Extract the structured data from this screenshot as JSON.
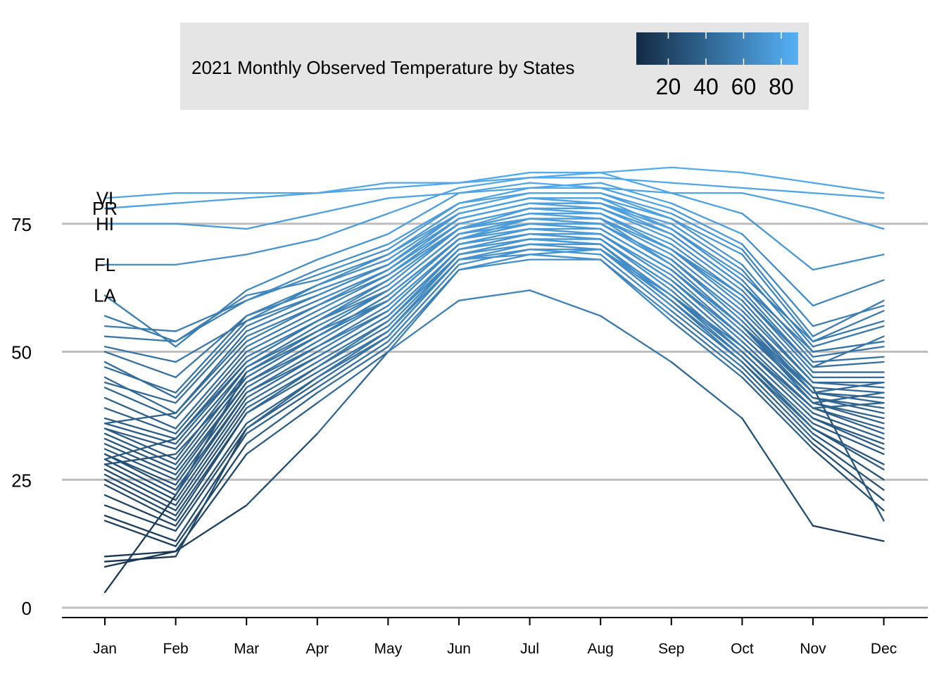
{
  "chart_data": {
    "type": "line",
    "legend": {
      "title": "2021 Monthly Observed Temperature by States",
      "ticks": [
        20,
        40,
        60,
        80
      ],
      "tick_labels": [
        "20",
        "40",
        "60",
        "80"
      ],
      "range": [
        3,
        89
      ],
      "colors": [
        "#132b43",
        "#56b1f7"
      ],
      "placement": "top"
    },
    "categories": [
      "Jan",
      "Feb",
      "Mar",
      "Apr",
      "May",
      "Jun",
      "Jul",
      "Aug",
      "Sep",
      "Oct",
      "Nov",
      "Dec"
    ],
    "yticks": [
      0,
      25,
      50,
      75
    ],
    "ytick_labels": [
      "0",
      "25",
      "50",
      "75"
    ],
    "ylim": [
      0,
      89
    ],
    "grid": "horizontal",
    "annotations": [
      "VI",
      "PR",
      "HI",
      "FL",
      "LA"
    ],
    "series": [
      {
        "name": "VI",
        "values": [
          80,
          81,
          81,
          81,
          83,
          83,
          85,
          85,
          86,
          85,
          83,
          81
        ]
      },
      {
        "name": "PR",
        "values": [
          78,
          79,
          80,
          81,
          82,
          83,
          84,
          84,
          83,
          82,
          81,
          80
        ]
      },
      {
        "name": "HI",
        "values": [
          75,
          75,
          74,
          77,
          80,
          81,
          83,
          82,
          81,
          81,
          78,
          74
        ]
      },
      {
        "name": "FL",
        "values": [
          67,
          67,
          69,
          72,
          77,
          82,
          84,
          85,
          81,
          77,
          66,
          69
        ]
      },
      {
        "name": "LA",
        "values": [
          61,
          51,
          62,
          68,
          73,
          81,
          82,
          83,
          79,
          73,
          59,
          64
        ]
      },
      {
        "values": [
          57,
          52,
          60,
          66,
          71,
          79,
          82,
          82,
          78,
          71,
          55,
          59
        ]
      },
      {
        "values": [
          55,
          54,
          60,
          65,
          70,
          79,
          81,
          81,
          77,
          70,
          53,
          60
        ]
      },
      {
        "values": [
          53,
          52,
          61,
          64,
          69,
          78,
          81,
          81,
          76,
          69,
          52,
          58
        ]
      },
      {
        "values": [
          51,
          48,
          56,
          63,
          68,
          77,
          80,
          80,
          76,
          67,
          51,
          55
        ]
      },
      {
        "values": [
          50,
          45,
          57,
          62,
          67,
          77,
          80,
          79,
          75,
          66,
          50,
          52
        ]
      },
      {
        "values": [
          48,
          41,
          56,
          61,
          67,
          76,
          79,
          79,
          74,
          64,
          49,
          51
        ]
      },
      {
        "values": [
          45,
          38,
          54,
          60,
          66,
          76,
          79,
          78,
          73,
          63,
          48,
          49
        ]
      },
      {
        "values": [
          43,
          37,
          52,
          59,
          66,
          75,
          78,
          78,
          72,
          62,
          47,
          48
        ]
      },
      {
        "values": [
          41,
          35,
          51,
          58,
          65,
          75,
          78,
          77,
          71,
          61,
          46,
          46
        ]
      },
      {
        "values": [
          39,
          34,
          50,
          57,
          64,
          74,
          77,
          77,
          70,
          60,
          45,
          45
        ]
      },
      {
        "values": [
          37,
          33,
          49,
          56,
          64,
          74,
          77,
          76,
          70,
          59,
          44,
          44
        ]
      },
      {
        "values": [
          36,
          32,
          48,
          56,
          63,
          74,
          76,
          76,
          69,
          58,
          44,
          43
        ]
      },
      {
        "values": [
          35,
          31,
          47,
          55,
          62,
          73,
          76,
          75,
          68,
          57,
          43,
          42
        ]
      },
      {
        "values": [
          35,
          29,
          47,
          54,
          62,
          73,
          75,
          75,
          68,
          56,
          42,
          41
        ]
      },
      {
        "values": [
          34,
          28,
          46,
          53,
          61,
          72,
          75,
          75,
          67,
          55,
          42,
          40
        ]
      },
      {
        "values": [
          33,
          27,
          45,
          53,
          60,
          72,
          75,
          74,
          66,
          55,
          41,
          39
        ]
      },
      {
        "values": [
          32,
          26,
          44,
          52,
          60,
          72,
          74,
          74,
          66,
          54,
          41,
          38
        ]
      },
      {
        "values": [
          31,
          25,
          44,
          51,
          59,
          71,
          74,
          73,
          65,
          53,
          40,
          37
        ]
      },
      {
        "values": [
          30,
          24,
          43,
          51,
          58,
          71,
          74,
          73,
          64,
          53,
          40,
          36
        ]
      },
      {
        "values": [
          30,
          23,
          42,
          50,
          58,
          71,
          73,
          73,
          64,
          52,
          39,
          35
        ]
      },
      {
        "values": [
          29,
          22,
          42,
          49,
          57,
          70,
          73,
          72,
          63,
          51,
          39,
          34
        ]
      },
      {
        "values": [
          28,
          21,
          41,
          49,
          57,
          70,
          73,
          72,
          63,
          51,
          38,
          33
        ]
      },
      {
        "values": [
          27,
          20,
          40,
          48,
          56,
          70,
          72,
          72,
          62,
          50,
          37,
          32
        ]
      },
      {
        "values": [
          26,
          19,
          39,
          47,
          56,
          69,
          72,
          71,
          61,
          50,
          37,
          31
        ]
      },
      {
        "values": [
          25,
          18,
          38,
          47,
          55,
          69,
          72,
          71,
          61,
          49,
          36,
          30
        ]
      },
      {
        "values": [
          24,
          17,
          38,
          46,
          54,
          69,
          71,
          71,
          60,
          49,
          35,
          28
        ]
      },
      {
        "values": [
          22,
          16,
          36,
          45,
          54,
          68,
          71,
          70,
          60,
          48,
          35,
          27
        ]
      },
      {
        "values": [
          20,
          15,
          35,
          44,
          53,
          68,
          70,
          70,
          59,
          48,
          34,
          25
        ]
      },
      {
        "values": [
          18,
          13,
          34,
          43,
          52,
          67,
          70,
          69,
          58,
          47,
          33,
          23
        ]
      },
      {
        "values": [
          17,
          12,
          32,
          42,
          51,
          66,
          69,
          68,
          57,
          46,
          32,
          21
        ]
      },
      {
        "values": [
          10,
          11,
          30,
          40,
          50,
          66,
          68,
          68,
          56,
          45,
          31,
          19
        ]
      },
      {
        "values": [
          9,
          10,
          35,
          45,
          53,
          68,
          69,
          70,
          61,
          51,
          39,
          40
        ]
      },
      {
        "values": [
          8,
          11,
          20,
          34,
          50,
          60,
          62,
          57,
          48,
          37,
          16,
          13
        ]
      },
      {
        "values": [
          3,
          22,
          46,
          54,
          60,
          72,
          76,
          76,
          67,
          55,
          43,
          17
        ]
      },
      {
        "values": [
          29,
          33,
          48,
          56,
          62,
          73,
          76,
          75,
          68,
          57,
          42,
          44
        ]
      },
      {
        "values": [
          28,
          30,
          45,
          53,
          61,
          72,
          75,
          74,
          66,
          55,
          40,
          42
        ]
      },
      {
        "values": [
          36,
          38,
          53,
          59,
          65,
          74,
          78,
          77,
          70,
          61,
          47,
          53
        ]
      },
      {
        "values": [
          44,
          40,
          55,
          61,
          67,
          76,
          79,
          79,
          73,
          63,
          50,
          52
        ]
      },
      {
        "values": [
          47,
          42,
          57,
          63,
          69,
          77,
          80,
          80,
          74,
          65,
          52,
          56
        ]
      }
    ]
  }
}
